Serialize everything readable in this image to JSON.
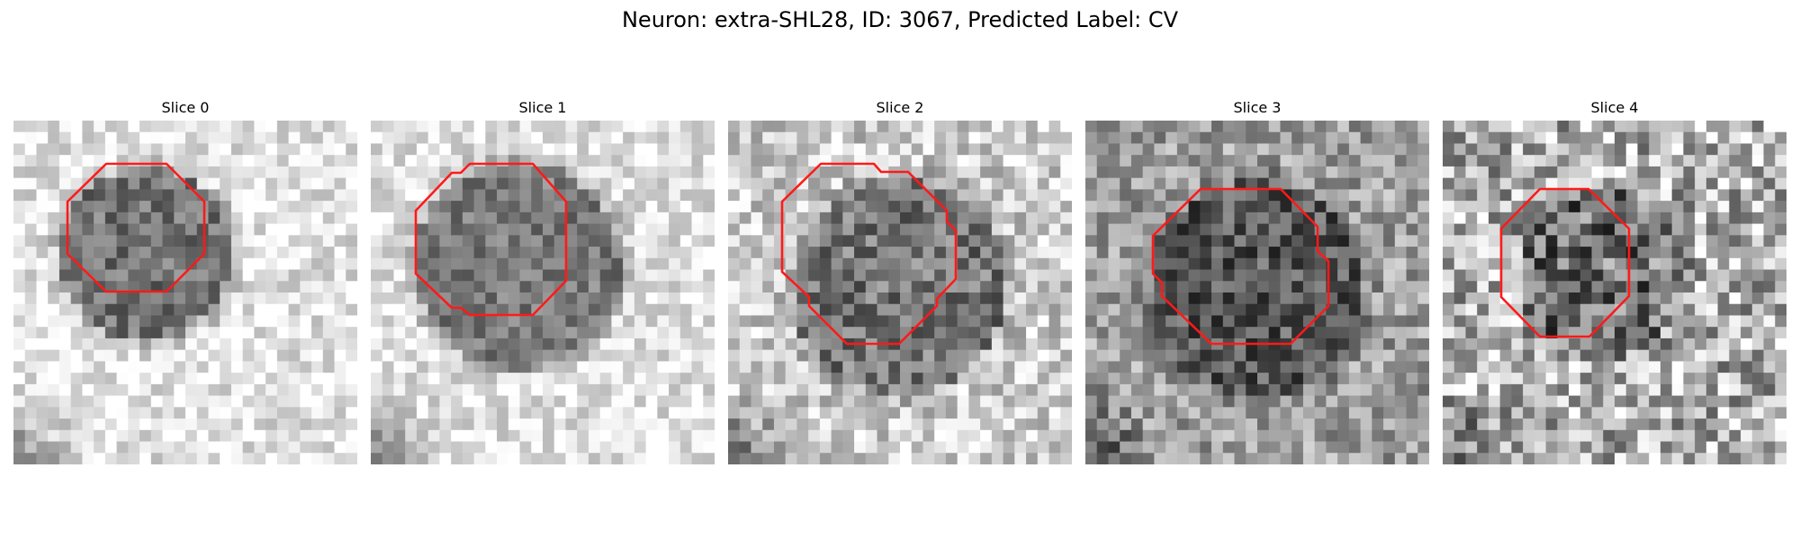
{
  "figure": {
    "title": "Neuron: extra-SHL28, ID: 3067, Predicted Label: CV"
  },
  "style": {
    "contour_color": "#ff1a1a"
  },
  "panels": [
    {
      "title": "Slice 0",
      "seed": 11,
      "base": 0.9,
      "contrast": 0.45,
      "noise": 0.18
    },
    {
      "title": "Slice 1",
      "seed": 23,
      "base": 0.88,
      "contrast": 0.4,
      "noise": 0.16
    },
    {
      "title": "Slice 2",
      "seed": 37,
      "base": 0.8,
      "contrast": 0.34,
      "noise": 0.22
    },
    {
      "title": "Slice 3",
      "seed": 53,
      "base": 0.62,
      "contrast": 0.28,
      "noise": 0.22
    },
    {
      "title": "Slice 4",
      "seed": 71,
      "base": 0.7,
      "contrast": 0.26,
      "noise": 0.34
    }
  ]
}
